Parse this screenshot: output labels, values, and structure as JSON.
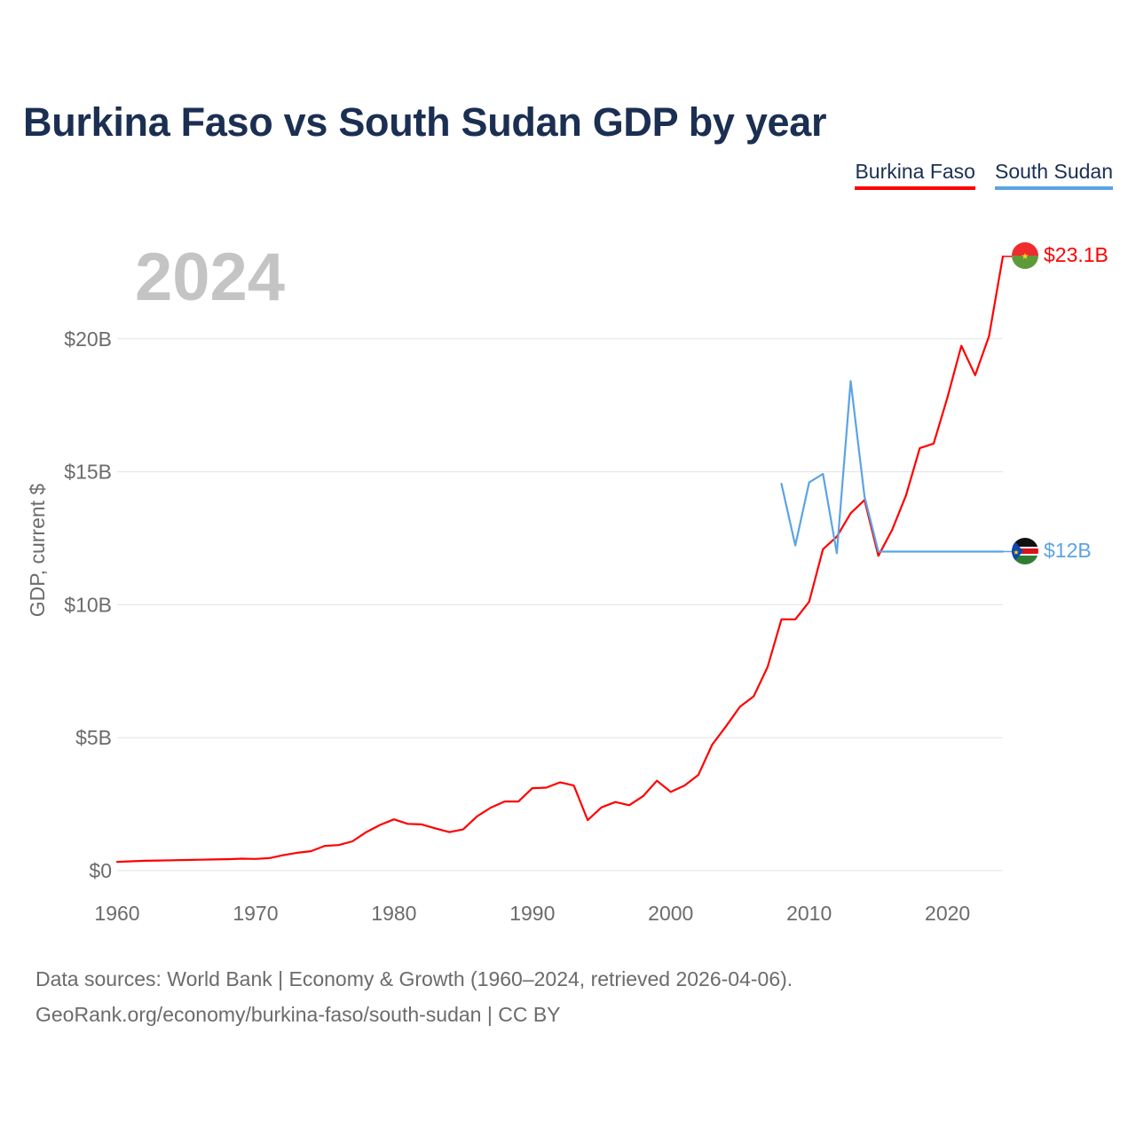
{
  "title": "Burkina Faso vs South Sudan GDP by year",
  "legend": [
    {
      "name": "Burkina Faso",
      "color": "#ff0000"
    },
    {
      "name": "South Sudan",
      "color": "#5ba3e5"
    }
  ],
  "footer": {
    "line1": "Data sources: World Bank | Economy & Growth (1960–2024, retrieved 2026-04-06).",
    "line2": "GeoRank.org/economy/burkina-faso/south-sudan | CC BY"
  },
  "chart_data": {
    "type": "line",
    "title": "Burkina Faso vs South Sudan GDP by year",
    "year_label": "2024",
    "ylabel": "GDP, current $",
    "xlabel": "",
    "xlim": [
      1960,
      2024
    ],
    "ylim": [
      0,
      25
    ],
    "y_unit": "billions USD",
    "yticks": [
      0,
      5,
      10,
      15,
      20
    ],
    "ytick_labels": [
      "$0",
      "$5B",
      "$10B",
      "$15B",
      "$20B"
    ],
    "xticks": [
      1960,
      1970,
      1980,
      1990,
      2000,
      2010,
      2020
    ],
    "xtick_labels": [
      "1960",
      "1970",
      "1980",
      "1990",
      "2000",
      "2010",
      "2020"
    ],
    "grid": true,
    "legend_position": "top-right",
    "series": [
      {
        "name": "Burkina Faso",
        "color": "#ff0000",
        "end_label": "$23.1B",
        "flag": "burkina-faso-flag",
        "x": [
          1960,
          1961,
          1962,
          1963,
          1964,
          1965,
          1966,
          1967,
          1968,
          1969,
          1970,
          1971,
          1972,
          1973,
          1974,
          1975,
          1976,
          1977,
          1978,
          1979,
          1980,
          1981,
          1982,
          1983,
          1984,
          1985,
          1986,
          1987,
          1988,
          1989,
          1990,
          1991,
          1992,
          1993,
          1994,
          1995,
          1996,
          1997,
          1998,
          1999,
          2000,
          2001,
          2002,
          2003,
          2004,
          2005,
          2006,
          2007,
          2008,
          2009,
          2010,
          2011,
          2012,
          2013,
          2014,
          2015,
          2016,
          2017,
          2018,
          2019,
          2020,
          2021,
          2022,
          2023,
          2024
        ],
        "values": [
          0.33,
          0.35,
          0.37,
          0.38,
          0.39,
          0.4,
          0.41,
          0.42,
          0.43,
          0.45,
          0.44,
          0.47,
          0.58,
          0.67,
          0.73,
          0.93,
          0.96,
          1.1,
          1.45,
          1.72,
          1.93,
          1.76,
          1.74,
          1.59,
          1.45,
          1.55,
          2.04,
          2.37,
          2.6,
          2.6,
          3.1,
          3.12,
          3.32,
          3.2,
          1.9,
          2.38,
          2.58,
          2.46,
          2.8,
          3.38,
          2.96,
          3.2,
          3.6,
          4.74,
          5.43,
          6.16,
          6.56,
          7.66,
          9.45,
          9.45,
          10.11,
          12.09,
          12.56,
          13.44,
          13.94,
          11.84,
          12.82,
          14.11,
          15.89,
          16.06,
          17.8,
          19.74,
          18.63,
          20.1,
          23.1
        ]
      },
      {
        "name": "South Sudan",
        "color": "#5ba3e5",
        "end_label": "$12B",
        "flag": "south-sudan-flag",
        "x": [
          2008,
          2009,
          2010,
          2011,
          2012,
          2013,
          2014,
          2015,
          2016,
          2017,
          2018,
          2019,
          2020,
          2021,
          2022,
          2023,
          2024
        ],
        "values": [
          14.55,
          12.23,
          14.6,
          14.92,
          11.94,
          18.41,
          14.07,
          12.0,
          12.0,
          12.0,
          12.0,
          12.0,
          12.0,
          12.0,
          12.0,
          12.0,
          12.0
        ]
      }
    ]
  }
}
